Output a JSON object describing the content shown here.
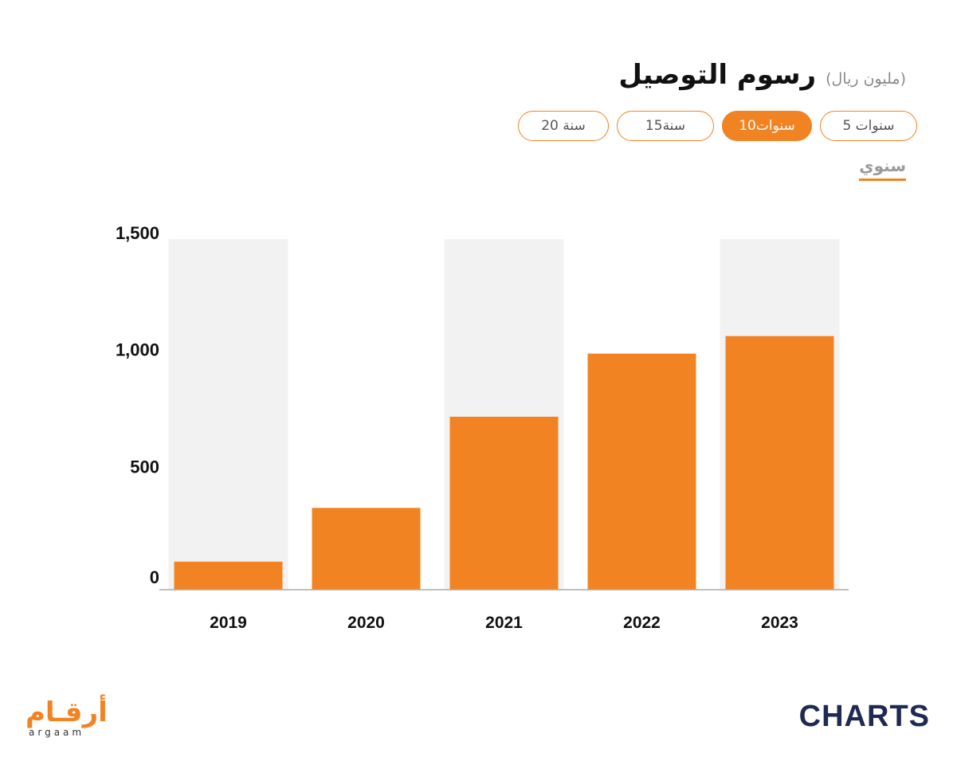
{
  "header": {
    "title": "رسوم التوصيل",
    "unit": "(مليون ريال)"
  },
  "period_options": [
    {
      "label": "5 سنوات",
      "active": false
    },
    {
      "label": "10سنوات",
      "active": true
    },
    {
      "label": "15سنة",
      "active": false
    },
    {
      "label": "20 سنة",
      "active": false
    }
  ],
  "frequency_label": "سنوي",
  "colors": {
    "accent": "#f28322",
    "band": "#f2f2f2",
    "axis": "#aaaaaa",
    "brand_dark": "#1e2a52"
  },
  "chart_data": {
    "type": "bar",
    "categories": [
      "2019",
      "2020",
      "2021",
      "2022",
      "2023"
    ],
    "values": [
      120,
      350,
      740,
      1010,
      1085
    ],
    "ylim": [
      0,
      1500
    ],
    "yticks": [
      0,
      500,
      1000,
      1500
    ],
    "ytick_labels": [
      "0",
      "500",
      "1,000",
      "1,500"
    ],
    "alternating_bands": true,
    "legend": "none"
  },
  "footer": {
    "argaam_logo_ar": "أرقـام",
    "argaam_logo_en": "argaam",
    "charts_logo": "CHARTS"
  }
}
